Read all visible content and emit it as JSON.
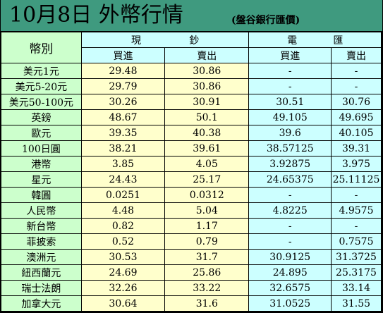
{
  "header": {
    "title": "10月8日 外幣行情",
    "source": "(盤谷銀行匯價)"
  },
  "table": {
    "currency_header": "幣別",
    "groups": [
      {
        "left": "現",
        "right": "鈔"
      },
      {
        "left": "電",
        "right": "匯"
      }
    ],
    "subheaders": [
      "買進",
      "賣出",
      "買進",
      "賣出"
    ],
    "rows": [
      {
        "currency": "美元1元",
        "cash_buy": "29.48",
        "cash_sell": "30.86",
        "wire_buy": "-",
        "wire_sell": "-"
      },
      {
        "currency": "美元5-20元",
        "cash_buy": "29.79",
        "cash_sell": "30.86",
        "wire_buy": "-",
        "wire_sell": "-"
      },
      {
        "currency": "美元50-100元",
        "cash_buy": "30.26",
        "cash_sell": "30.91",
        "wire_buy": "30.51",
        "wire_sell": "30.76"
      },
      {
        "currency": "英鎊",
        "cash_buy": "48.67",
        "cash_sell": "50.1",
        "wire_buy": "49.105",
        "wire_sell": "49.695"
      },
      {
        "currency": "歐元",
        "cash_buy": "39.35",
        "cash_sell": "40.38",
        "wire_buy": "39.6",
        "wire_sell": "40.105"
      },
      {
        "currency": "100日圓",
        "cash_buy": "38.21",
        "cash_sell": "39.61",
        "wire_buy": "38.57125",
        "wire_sell": "39.31"
      },
      {
        "currency": "港幣",
        "cash_buy": "3.85",
        "cash_sell": "4.05",
        "wire_buy": "3.92875",
        "wire_sell": "3.975"
      },
      {
        "currency": "星元",
        "cash_buy": "24.43",
        "cash_sell": "25.17",
        "wire_buy": "24.65375",
        "wire_sell": "25.11125"
      },
      {
        "currency": "韓圓",
        "cash_buy": "0.0251",
        "cash_sell": "0.0312",
        "wire_buy": "-",
        "wire_sell": "-"
      },
      {
        "currency": "人民幣",
        "cash_buy": "4.48",
        "cash_sell": "5.04",
        "wire_buy": "4.8225",
        "wire_sell": "4.9575"
      },
      {
        "currency": "新台幣",
        "cash_buy": "0.82",
        "cash_sell": "1.17",
        "wire_buy": "-",
        "wire_sell": "-"
      },
      {
        "currency": "菲披索",
        "cash_buy": "0.52",
        "cash_sell": "0.79",
        "wire_buy": "-",
        "wire_sell": "0.7575"
      },
      {
        "currency": "澳洲元",
        "cash_buy": "30.53",
        "cash_sell": "31.7",
        "wire_buy": "30.9125",
        "wire_sell": "31.3725"
      },
      {
        "currency": "紐西蘭元",
        "cash_buy": "24.69",
        "cash_sell": "25.86",
        "wire_buy": "24.895",
        "wire_sell": "25.3175"
      },
      {
        "currency": "瑞士法朗",
        "cash_buy": "32.26",
        "cash_sell": "33.22",
        "wire_buy": "32.6575",
        "wire_sell": "33.14"
      },
      {
        "currency": "加拿大元",
        "cash_buy": "30.64",
        "cash_sell": "31.6",
        "wire_buy": "31.0525",
        "wire_sell": "31.55"
      }
    ]
  },
  "colors": {
    "header_band": "#3f9a7f",
    "label_column": "#ccffcc",
    "cash_columns": "#ffffcc",
    "wire_columns": "#ccffff"
  }
}
